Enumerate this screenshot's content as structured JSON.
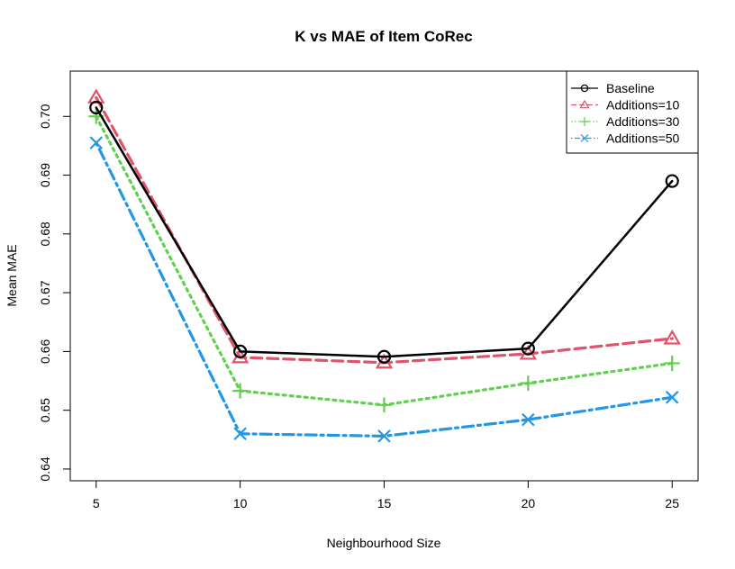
{
  "chart_data": {
    "type": "line",
    "title": "K vs MAE of Item CoRec",
    "xlabel": "Neighbourhood Size",
    "ylabel": "Mean MAE",
    "x": [
      5,
      10,
      15,
      20,
      25
    ],
    "xticks": [
      5,
      10,
      15,
      20,
      25
    ],
    "yticks": [
      0.64,
      0.65,
      0.66,
      0.67,
      0.68,
      0.69,
      0.7
    ],
    "xlim": [
      4.1,
      25.9
    ],
    "ylim": [
      0.638,
      0.7077
    ],
    "grid": false,
    "legend_position": "top-right",
    "series": [
      {
        "name": "Baseline",
        "color": "#000000",
        "dash": "solid",
        "marker": "circle",
        "values": [
          0.7015,
          0.66,
          0.6591,
          0.6605,
          0.689
        ]
      },
      {
        "name": "Additions=10",
        "color": "#DF536B",
        "dash": "dashed",
        "marker": "triangle",
        "values": [
          0.7032,
          0.659,
          0.6581,
          0.6596,
          0.6622
        ]
      },
      {
        "name": "Additions=30",
        "color": "#61D04F",
        "dash": "dotted",
        "marker": "plus",
        "values": [
          0.7,
          0.6533,
          0.6509,
          0.6546,
          0.658
        ]
      },
      {
        "name": "Additions=50",
        "color": "#2297E6",
        "dash": "dotdash",
        "marker": "cross",
        "values": [
          0.6955,
          0.646,
          0.6456,
          0.6484,
          0.6522
        ]
      }
    ]
  }
}
